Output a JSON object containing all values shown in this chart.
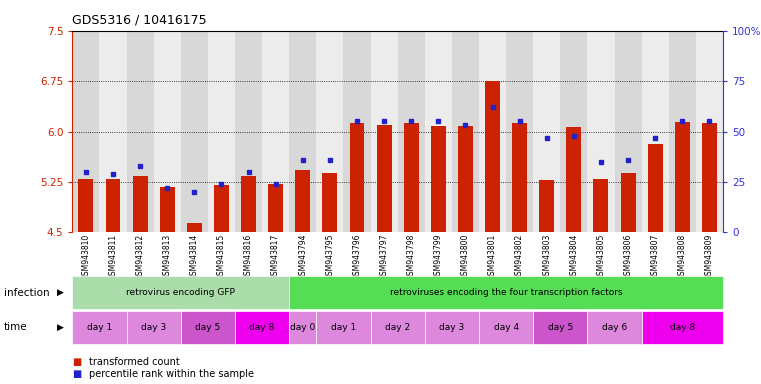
{
  "title": "GDS5316 / 10416175",
  "samples": [
    "GSM943810",
    "GSM943811",
    "GSM943812",
    "GSM943813",
    "GSM943814",
    "GSM943815",
    "GSM943816",
    "GSM943817",
    "GSM943794",
    "GSM943795",
    "GSM943796",
    "GSM943797",
    "GSM943798",
    "GSM943799",
    "GSM943800",
    "GSM943801",
    "GSM943802",
    "GSM943803",
    "GSM943804",
    "GSM943805",
    "GSM943806",
    "GSM943807",
    "GSM943808",
    "GSM943809"
  ],
  "red_values": [
    5.3,
    5.29,
    5.34,
    5.18,
    4.64,
    5.21,
    5.34,
    5.22,
    5.42,
    5.38,
    6.13,
    6.1,
    6.13,
    6.08,
    6.08,
    6.75,
    6.13,
    5.28,
    6.07,
    5.3,
    5.38,
    5.82,
    6.14,
    6.13
  ],
  "blue_values": [
    30,
    29,
    33,
    22,
    20,
    24,
    30,
    24,
    36,
    36,
    55,
    55,
    55,
    55,
    53,
    62,
    55,
    47,
    48,
    35,
    36,
    47,
    55,
    55
  ],
  "y_min": 4.5,
  "y_max": 7.5,
  "y_ticks": [
    4.5,
    5.25,
    6.0,
    6.75,
    7.5
  ],
  "right_y_ticks": [
    0,
    25,
    50,
    75,
    100
  ],
  "right_y_labels": [
    "0",
    "25",
    "50",
    "75",
    "100%"
  ],
  "bar_color": "#cc2200",
  "dot_color": "#2222cc",
  "left_axis_color": "#cc2200",
  "right_axis_color": "#3333dd",
  "col_bg_even": "#d8d8d8",
  "col_bg_odd": "#ececec",
  "infection_groups": [
    {
      "label": "retrovirus encoding GFP",
      "start": 0,
      "end": 8,
      "color": "#aaddaa"
    },
    {
      "label": "retroviruses encoding the four transcription factors",
      "start": 8,
      "end": 24,
      "color": "#55dd55"
    }
  ],
  "time_groups": [
    {
      "label": "day 1",
      "start": 0,
      "end": 2,
      "color": "#dd88dd"
    },
    {
      "label": "day 3",
      "start": 2,
      "end": 4,
      "color": "#dd88dd"
    },
    {
      "label": "day 5",
      "start": 4,
      "end": 6,
      "color": "#cc55cc"
    },
    {
      "label": "day 8",
      "start": 6,
      "end": 8,
      "color": "#ee00ee"
    },
    {
      "label": "day 0",
      "start": 8,
      "end": 9,
      "color": "#dd88dd"
    },
    {
      "label": "day 1",
      "start": 9,
      "end": 11,
      "color": "#dd88dd"
    },
    {
      "label": "day 2",
      "start": 11,
      "end": 13,
      "color": "#dd88dd"
    },
    {
      "label": "day 3",
      "start": 13,
      "end": 15,
      "color": "#dd88dd"
    },
    {
      "label": "day 4",
      "start": 15,
      "end": 17,
      "color": "#dd88dd"
    },
    {
      "label": "day 5",
      "start": 17,
      "end": 19,
      "color": "#cc55cc"
    },
    {
      "label": "day 6",
      "start": 19,
      "end": 21,
      "color": "#dd88dd"
    },
    {
      "label": "day 8",
      "start": 21,
      "end": 24,
      "color": "#ee00ee"
    }
  ]
}
